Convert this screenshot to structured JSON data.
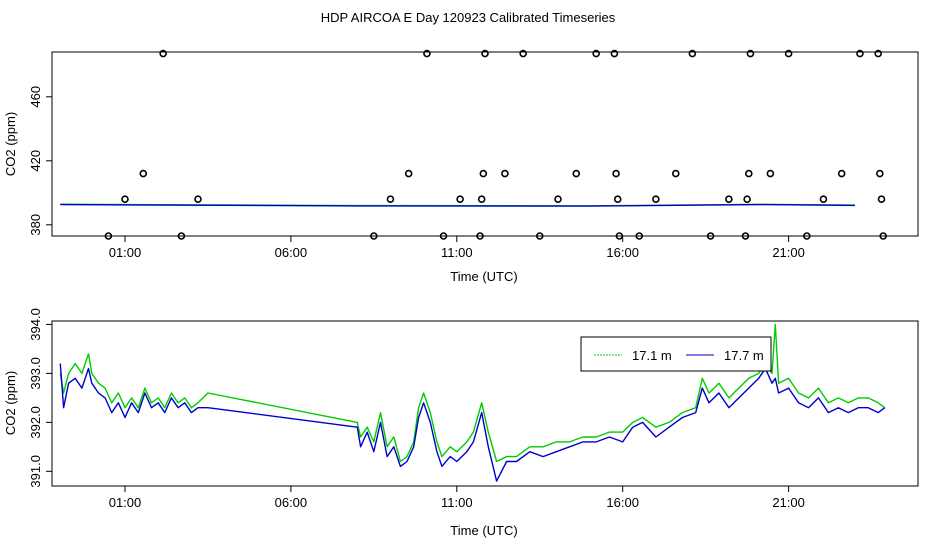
{
  "page_title": "HDP AIRCOA E  Day 120923  Calibrated Timeseries",
  "chart_data": [
    {
      "type": "scatter",
      "xlabel": "Time (UTC)",
      "ylabel": "CO2 (ppm)",
      "x_tick_labels": [
        "01:00",
        "06:00",
        "11:00",
        "16:00",
        "21:00"
      ],
      "x_tick_hours": [
        1,
        6,
        11,
        16,
        21
      ],
      "y_ticks": [
        380,
        420,
        460
      ],
      "xlim_hours": [
        -1.2,
        24.9
      ],
      "ylim": [
        373,
        488
      ],
      "flag_markers_hours": [
        {
          "x": 0.5,
          "y": 373
        },
        {
          "x": 1.0,
          "y": 396
        },
        {
          "x": 1.55,
          "y": 412
        },
        {
          "x": 2.15,
          "y": 487
        },
        {
          "x": 2.7,
          "y": 373
        },
        {
          "x": 3.2,
          "y": 396
        },
        {
          "x": 8.5,
          "y": 373
        },
        {
          "x": 9.0,
          "y": 396
        },
        {
          "x": 9.55,
          "y": 412
        },
        {
          "x": 10.1,
          "y": 487
        },
        {
          "x": 10.6,
          "y": 373
        },
        {
          "x": 11.1,
          "y": 396
        },
        {
          "x": 11.7,
          "y": 373
        },
        {
          "x": 11.75,
          "y": 396
        },
        {
          "x": 11.8,
          "y": 412
        },
        {
          "x": 11.85,
          "y": 487
        },
        {
          "x": 12.45,
          "y": 412
        },
        {
          "x": 13.0,
          "y": 487
        },
        {
          "x": 13.5,
          "y": 373
        },
        {
          "x": 14.05,
          "y": 396
        },
        {
          "x": 14.6,
          "y": 412
        },
        {
          "x": 15.2,
          "y": 487
        },
        {
          "x": 15.75,
          "y": 487
        },
        {
          "x": 15.8,
          "y": 412
        },
        {
          "x": 15.85,
          "y": 396
        },
        {
          "x": 15.9,
          "y": 373
        },
        {
          "x": 16.5,
          "y": 373
        },
        {
          "x": 17.0,
          "y": 396
        },
        {
          "x": 17.6,
          "y": 412
        },
        {
          "x": 18.1,
          "y": 487
        },
        {
          "x": 18.65,
          "y": 373
        },
        {
          "x": 19.2,
          "y": 396
        },
        {
          "x": 19.7,
          "y": 373
        },
        {
          "x": 19.75,
          "y": 396
        },
        {
          "x": 19.8,
          "y": 412
        },
        {
          "x": 19.85,
          "y": 487
        },
        {
          "x": 20.45,
          "y": 412
        },
        {
          "x": 21.0,
          "y": 487
        },
        {
          "x": 21.55,
          "y": 373
        },
        {
          "x": 22.05,
          "y": 396
        },
        {
          "x": 22.6,
          "y": 412
        },
        {
          "x": 23.15,
          "y": 487
        },
        {
          "x": 23.7,
          "y": 487
        },
        {
          "x": 23.75,
          "y": 412
        },
        {
          "x": 23.8,
          "y": 396
        },
        {
          "x": 23.85,
          "y": 373
        }
      ],
      "series": [
        {
          "color": "#00cc00",
          "values_hours": [
            [
              -0.95,
              392.9
            ],
            [
              8.0,
              392.0
            ],
            [
              15.0,
              391.9
            ],
            [
              20.2,
              392.8
            ],
            [
              23.0,
              392.3
            ]
          ]
        },
        {
          "color": "#0000cc",
          "values_hours": [
            [
              -0.95,
              392.6
            ],
            [
              8.0,
              391.8
            ],
            [
              15.0,
              391.7
            ],
            [
              20.2,
              392.6
            ],
            [
              23.0,
              392.1
            ]
          ]
        }
      ],
      "grid": false
    },
    {
      "type": "line",
      "xlabel": "Time (UTC)",
      "ylabel": "CO2 (ppm)",
      "x_tick_labels": [
        "01:00",
        "06:00",
        "11:00",
        "16:00",
        "21:00"
      ],
      "x_tick_hours": [
        1,
        6,
        11,
        16,
        21
      ],
      "y_tick_labels": [
        "391.0",
        "392.0",
        "393.0",
        "394.0"
      ],
      "y_ticks": [
        391.0,
        392.0,
        393.0,
        394.0
      ],
      "xlim_hours": [
        -1.2,
        24.9
      ],
      "ylim": [
        390.7,
        394.07
      ],
      "legend_position": "top-right",
      "series": [
        {
          "name": "17.1 m",
          "color": "#00cc00",
          "values_hours": [
            [
              -0.95,
              393.0
            ],
            [
              -0.85,
              392.6
            ],
            [
              -0.7,
              393.0
            ],
            [
              -0.5,
              393.2
            ],
            [
              -0.3,
              393.0
            ],
            [
              -0.1,
              393.4
            ],
            [
              0.0,
              393.0
            ],
            [
              0.2,
              392.8
            ],
            [
              0.4,
              392.7
            ],
            [
              0.6,
              392.4
            ],
            [
              0.8,
              392.6
            ],
            [
              1.0,
              392.3
            ],
            [
              1.2,
              392.5
            ],
            [
              1.4,
              392.3
            ],
            [
              1.6,
              392.7
            ],
            [
              1.8,
              392.4
            ],
            [
              2.0,
              392.5
            ],
            [
              2.2,
              392.3
            ],
            [
              2.4,
              392.6
            ],
            [
              2.6,
              392.4
            ],
            [
              2.8,
              392.5
            ],
            [
              3.0,
              392.3
            ],
            [
              3.2,
              392.4
            ],
            [
              3.5,
              392.6
            ],
            [
              8.0,
              392.0
            ],
            [
              8.1,
              391.7
            ],
            [
              8.3,
              391.9
            ],
            [
              8.5,
              391.6
            ],
            [
              8.7,
              392.2
            ],
            [
              8.9,
              391.5
            ],
            [
              9.1,
              391.7
            ],
            [
              9.3,
              391.2
            ],
            [
              9.5,
              391.3
            ],
            [
              9.7,
              391.6
            ],
            [
              9.85,
              392.3
            ],
            [
              10.0,
              392.6
            ],
            [
              10.2,
              392.2
            ],
            [
              10.4,
              391.6
            ],
            [
              10.55,
              391.3
            ],
            [
              10.8,
              391.5
            ],
            [
              11.0,
              391.4
            ],
            [
              11.3,
              391.6
            ],
            [
              11.5,
              391.8
            ],
            [
              11.75,
              392.4
            ],
            [
              11.95,
              391.8
            ],
            [
              12.2,
              391.2
            ],
            [
              12.5,
              391.3
            ],
            [
              12.8,
              391.3
            ],
            [
              13.2,
              391.5
            ],
            [
              13.6,
              391.5
            ],
            [
              14.0,
              391.6
            ],
            [
              14.4,
              391.6
            ],
            [
              14.8,
              391.7
            ],
            [
              15.2,
              391.7
            ],
            [
              15.6,
              391.8
            ],
            [
              16.0,
              391.8
            ],
            [
              16.3,
              392.0
            ],
            [
              16.6,
              392.1
            ],
            [
              17.0,
              391.9
            ],
            [
              17.4,
              392.0
            ],
            [
              17.8,
              392.2
            ],
            [
              18.2,
              392.3
            ],
            [
              18.4,
              392.9
            ],
            [
              18.6,
              392.6
            ],
            [
              18.9,
              392.8
            ],
            [
              19.2,
              392.5
            ],
            [
              19.5,
              392.7
            ],
            [
              19.8,
              392.9
            ],
            [
              20.1,
              393.0
            ],
            [
              20.3,
              393.2
            ],
            [
              20.5,
              393.0
            ],
            [
              20.6,
              394.0
            ],
            [
              20.7,
              392.8
            ],
            [
              21.0,
              392.9
            ],
            [
              21.3,
              392.6
            ],
            [
              21.6,
              392.5
            ],
            [
              21.9,
              392.7
            ],
            [
              22.2,
              392.4
            ],
            [
              22.5,
              392.5
            ],
            [
              22.8,
              392.4
            ],
            [
              23.1,
              392.5
            ],
            [
              23.4,
              392.5
            ],
            [
              23.7,
              392.4
            ],
            [
              23.9,
              392.3
            ]
          ]
        },
        {
          "name": "17.7 m",
          "color": "#0000cc",
          "values_hours": [
            [
              -0.95,
              393.2
            ],
            [
              -0.85,
              392.3
            ],
            [
              -0.7,
              392.8
            ],
            [
              -0.5,
              392.9
            ],
            [
              -0.3,
              392.7
            ],
            [
              -0.1,
              393.1
            ],
            [
              0.0,
              392.8
            ],
            [
              0.2,
              392.6
            ],
            [
              0.4,
              392.5
            ],
            [
              0.6,
              392.2
            ],
            [
              0.8,
              392.4
            ],
            [
              1.0,
              392.1
            ],
            [
              1.2,
              392.4
            ],
            [
              1.4,
              392.2
            ],
            [
              1.6,
              392.6
            ],
            [
              1.8,
              392.3
            ],
            [
              2.0,
              392.4
            ],
            [
              2.2,
              392.2
            ],
            [
              2.4,
              392.5
            ],
            [
              2.6,
              392.3
            ],
            [
              2.8,
              392.4
            ],
            [
              3.0,
              392.2
            ],
            [
              3.2,
              392.3
            ],
            [
              3.5,
              392.3
            ],
            [
              8.0,
              391.9
            ],
            [
              8.1,
              391.5
            ],
            [
              8.3,
              391.8
            ],
            [
              8.5,
              391.4
            ],
            [
              8.7,
              392.0
            ],
            [
              8.9,
              391.3
            ],
            [
              9.1,
              391.5
            ],
            [
              9.3,
              391.1
            ],
            [
              9.5,
              391.2
            ],
            [
              9.7,
              391.5
            ],
            [
              9.85,
              392.1
            ],
            [
              10.0,
              392.4
            ],
            [
              10.2,
              392.0
            ],
            [
              10.4,
              391.4
            ],
            [
              10.55,
              391.1
            ],
            [
              10.8,
              391.3
            ],
            [
              11.0,
              391.2
            ],
            [
              11.3,
              391.4
            ],
            [
              11.5,
              391.6
            ],
            [
              11.75,
              392.2
            ],
            [
              11.95,
              391.5
            ],
            [
              12.2,
              390.8
            ],
            [
              12.5,
              391.2
            ],
            [
              12.8,
              391.2
            ],
            [
              13.2,
              391.4
            ],
            [
              13.6,
              391.3
            ],
            [
              14.0,
              391.4
            ],
            [
              14.4,
              391.5
            ],
            [
              14.8,
              391.6
            ],
            [
              15.2,
              391.6
            ],
            [
              15.6,
              391.7
            ],
            [
              16.0,
              391.6
            ],
            [
              16.3,
              391.9
            ],
            [
              16.6,
              392.0
            ],
            [
              17.0,
              391.7
            ],
            [
              17.4,
              391.9
            ],
            [
              17.8,
              392.1
            ],
            [
              18.2,
              392.2
            ],
            [
              18.4,
              392.7
            ],
            [
              18.6,
              392.4
            ],
            [
              18.9,
              392.6
            ],
            [
              19.2,
              392.3
            ],
            [
              19.5,
              392.5
            ],
            [
              19.8,
              392.7
            ],
            [
              20.1,
              392.9
            ],
            [
              20.3,
              393.1
            ],
            [
              20.5,
              392.8
            ],
            [
              20.6,
              392.9
            ],
            [
              20.7,
              392.6
            ],
            [
              21.0,
              392.7
            ],
            [
              21.3,
              392.4
            ],
            [
              21.6,
              392.3
            ],
            [
              21.9,
              392.5
            ],
            [
              22.2,
              392.2
            ],
            [
              22.5,
              392.3
            ],
            [
              22.8,
              392.2
            ],
            [
              23.1,
              392.3
            ],
            [
              23.4,
              392.3
            ],
            [
              23.7,
              392.2
            ],
            [
              23.9,
              392.3
            ]
          ]
        }
      ],
      "grid": false
    }
  ]
}
